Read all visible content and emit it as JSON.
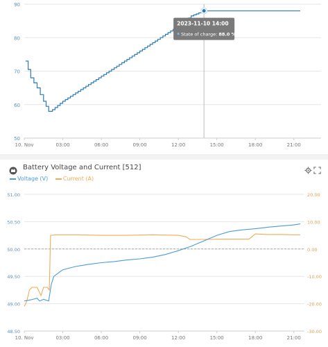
{
  "chart_data": [
    {
      "type": "line",
      "title": "",
      "xlabel": "",
      "ylabel": "",
      "x_ticks": [
        "10. Nov",
        "03:00",
        "06:00",
        "09:00",
        "12:00",
        "15:00",
        "18:00",
        "21:00"
      ],
      "y_ticks": [
        50,
        60,
        70,
        80,
        90
      ],
      "xlim": [
        0,
        21.5
      ],
      "ylim": [
        50,
        90
      ],
      "grid": true,
      "series": [
        {
          "name": "State of charge",
          "color": "#2a7ab8",
          "x": [
            0.1,
            0.5,
            1.0,
            1.5,
            1.9,
            2.2,
            3.0,
            4.0,
            5.0,
            6.0,
            7.0,
            8.0,
            9.0,
            10.0,
            11.0,
            12.0,
            13.0,
            14.0,
            21.5
          ],
          "y": [
            73,
            68,
            65,
            61,
            58,
            58.5,
            61,
            63.5,
            66,
            68.5,
            71,
            73.5,
            76,
            78.5,
            81,
            83.5,
            86.5,
            88,
            88
          ]
        }
      ],
      "tooltip": {
        "title": "2023-11-10 14:00",
        "label": "State of charge:",
        "value": "88.0 %"
      },
      "tooltip_x": 14.0,
      "tooltip_y": 88.0
    },
    {
      "type": "line",
      "title": "Battery Voltage and Current [512]",
      "xlabel": "",
      "ylabel": "",
      "x_ticks": [
        "10. Nov",
        "03:00",
        "06:00",
        "09:00",
        "12:00",
        "15:00",
        "18:00",
        "21:00"
      ],
      "xlim": [
        0,
        21.5
      ],
      "y_left_ticks": [
        "48.50",
        "49.00",
        "49.50",
        "50.00",
        "50.50",
        "51.00"
      ],
      "y_left_lim": [
        48.5,
        51.0
      ],
      "y_right_ticks": [
        "-30.00",
        "-20.00",
        "-10.00",
        "0.00",
        "10.00",
        "20.00"
      ],
      "y_right_lim": [
        -30,
        20
      ],
      "zero_line": 50.0,
      "grid": true,
      "series": [
        {
          "name": "Voltage (V)",
          "color": "#4a9bd6",
          "axis": "left",
          "x": [
            0.0,
            0.5,
            1.0,
            1.2,
            1.5,
            1.9,
            2.1,
            2.3,
            2.7,
            3.0,
            3.5,
            4.0,
            5.0,
            6.0,
            7.0,
            8.0,
            9.0,
            10.0,
            11.0,
            12.0,
            13.0,
            13.5,
            14.0,
            15.0,
            16.0,
            17.0,
            18.0,
            19.0,
            20.0,
            21.0,
            21.5
          ],
          "y": [
            49.05,
            49.07,
            49.1,
            49.05,
            49.08,
            49.05,
            49.35,
            49.5,
            49.57,
            49.62,
            49.65,
            49.68,
            49.72,
            49.75,
            49.77,
            49.8,
            49.82,
            49.85,
            49.9,
            49.97,
            50.05,
            50.1,
            50.15,
            50.25,
            50.32,
            50.35,
            50.37,
            50.4,
            50.42,
            50.44,
            50.46
          ]
        },
        {
          "name": "Current (A)",
          "color": "#f2aa55",
          "axis": "right",
          "x": [
            0.0,
            0.2,
            0.4,
            0.6,
            1.0,
            1.3,
            1.5,
            1.8,
            1.95,
            2.05,
            2.5,
            4.0,
            6.0,
            8.0,
            10.0,
            12.0,
            12.6,
            12.9,
            14.0,
            15.5,
            16.5,
            17.5,
            18.0,
            19.0,
            20.0,
            21.0,
            21.5
          ],
          "y": [
            -21.0,
            -19.0,
            -15.0,
            -14.0,
            -14.0,
            -17.0,
            -14.0,
            -14.0,
            -15.0,
            5.0,
            5.2,
            5.2,
            5.0,
            5.0,
            5.2,
            5.0,
            4.5,
            3.5,
            3.5,
            3.6,
            3.6,
            3.6,
            5.5,
            5.3,
            5.3,
            5.2,
            5.2
          ]
        }
      ]
    }
  ]
}
